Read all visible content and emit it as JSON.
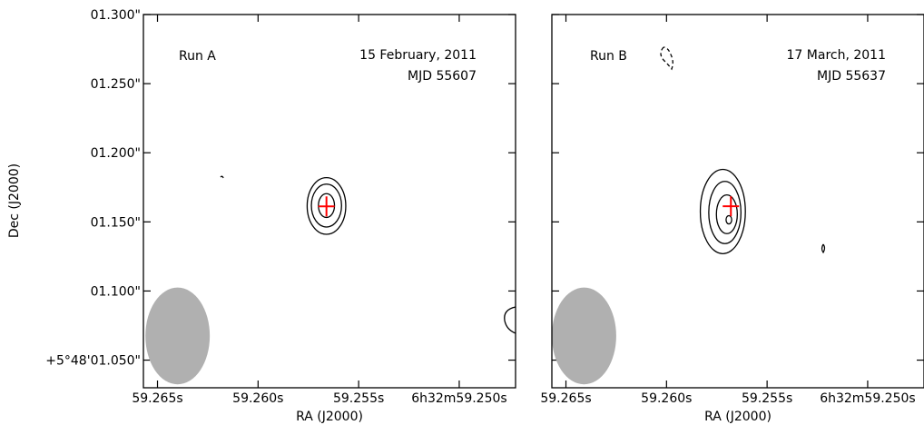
{
  "chart_data": [
    {
      "type": "contour",
      "panel": "left",
      "run_label": "Run A",
      "date_text": "15 February, 2011",
      "mjd_text": "MJD 55607",
      "xlabel": "RA (J2000)",
      "ylabel": "Dec (J2000)",
      "x_ticks": [
        "59.265s",
        "59.260s",
        "59.255s",
        "6h32m59.250s"
      ],
      "x_tick_values": [
        59.265,
        59.26,
        59.255,
        59.25
      ],
      "xlim": [
        59.2657,
        59.2472
      ],
      "y_ticks": [
        "+5°48'01.050\"",
        "01.100\"",
        "01.150\"",
        "01.200\"",
        "01.250\"",
        "01.300\""
      ],
      "y_tick_values": [
        1.05,
        1.1,
        1.15,
        1.2,
        1.25,
        1.3
      ],
      "ylim": [
        1.03,
        1.3
      ],
      "source_position": {
        "x": 59.2566,
        "y": 1.1612
      },
      "contours": [
        {
          "x": 59.2566,
          "y": 1.1615,
          "rx": 0.00096,
          "ry": 0.0205
        },
        {
          "x": 59.2566,
          "y": 1.1618,
          "rx": 0.00075,
          "ry": 0.0155
        },
        {
          "x": 59.2566,
          "y": 1.1618,
          "rx": 0.0004,
          "ry": 0.0086
        }
      ],
      "beam": {
        "x": 59.264,
        "y": 1.0675,
        "major": 0.035,
        "minor": 0.0016
      },
      "marker_color": "#ff0000",
      "beam_color": "#b0b0b0"
    },
    {
      "type": "contour",
      "panel": "right",
      "run_label": "Run B",
      "date_text": "17 March, 2011",
      "mjd_text": "MJD 55637",
      "xlabel": "RA (J2000)",
      "x_ticks": [
        "59.265s",
        "59.260s",
        "59.255s",
        "6h32m59.250s"
      ],
      "x_tick_values": [
        59.265,
        59.26,
        59.255,
        59.25
      ],
      "xlim": [
        59.2657,
        59.2472
      ],
      "ylim": [
        1.03,
        1.3
      ],
      "source_position": {
        "x": 59.2568,
        "y": 1.1613
      },
      "contours": [
        {
          "x": 59.2572,
          "y": 1.1575,
          "rx": 0.00112,
          "ry": 0.0305
        },
        {
          "x": 59.2571,
          "y": 1.1568,
          "rx": 0.0008,
          "ry": 0.0225
        },
        {
          "x": 59.257,
          "y": 1.1555,
          "rx": 0.00052,
          "ry": 0.014
        },
        {
          "x": 59.2569,
          "y": 1.1515,
          "rx": 0.00014,
          "ry": 0.003
        }
      ],
      "beam": {
        "x": 59.2641,
        "y": 1.0675,
        "major": 0.035,
        "minor": 0.0016
      },
      "marker_color": "#ff0000",
      "beam_color": "#b0b0b0"
    }
  ]
}
